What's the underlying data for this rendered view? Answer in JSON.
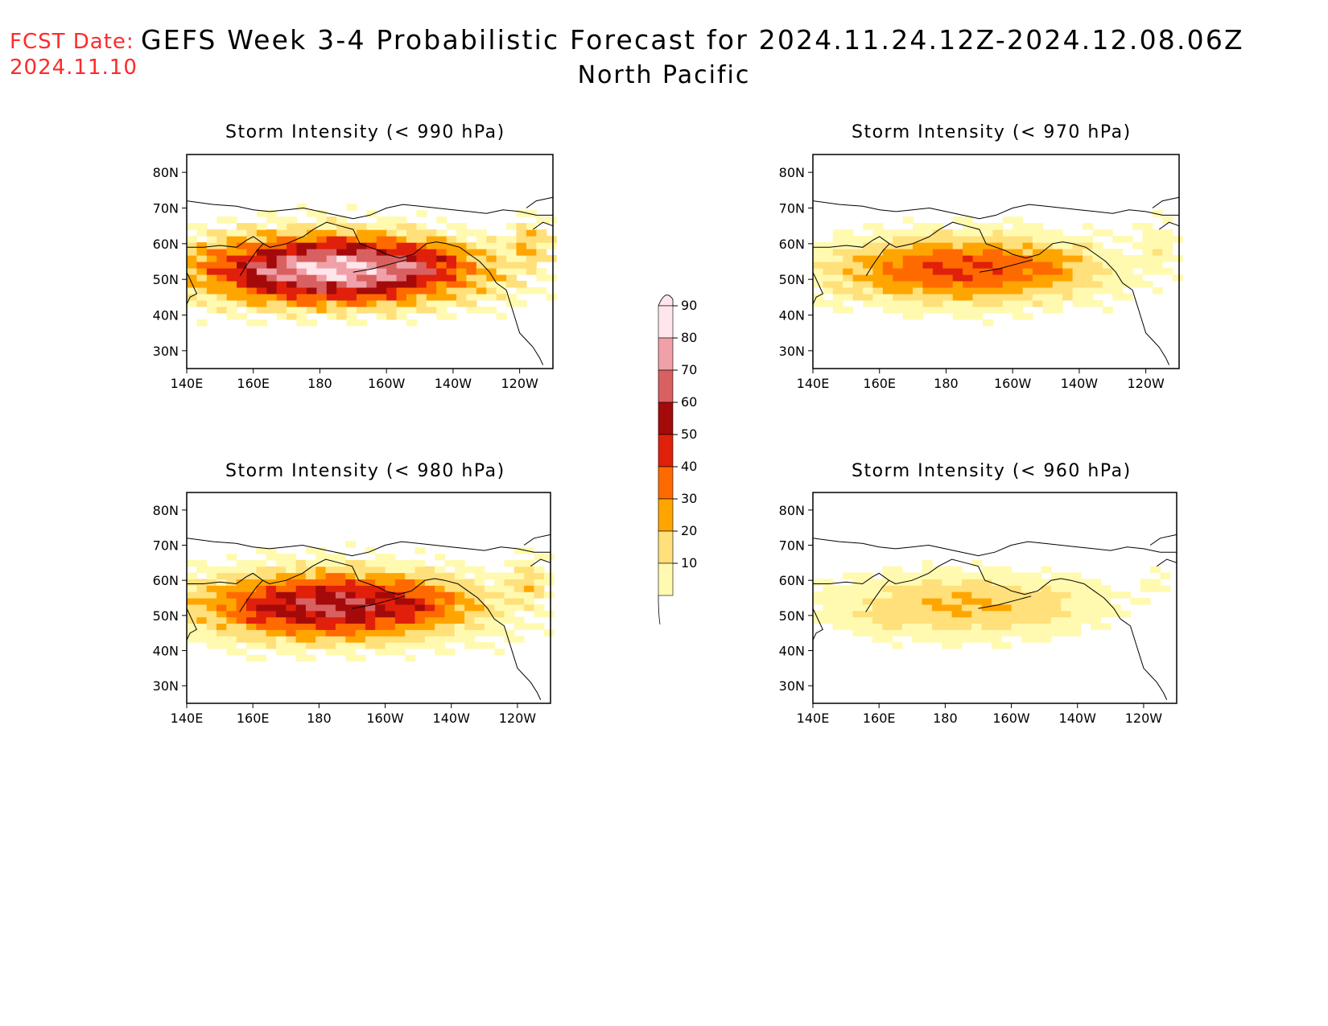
{
  "forecast": {
    "label": "FCST Date:",
    "date": "2024.11.10"
  },
  "header": {
    "title": "GEFS Week 3-4 Probabilistic Forecast for 2024.11.24.12Z-2024.12.08.06Z",
    "subtitle": "North Pacific"
  },
  "axes": {
    "lat_labels": [
      "80N",
      "70N",
      "60N",
      "50N",
      "40N",
      "30N"
    ],
    "lon_labels": [
      "140E",
      "160E",
      "180",
      "160W",
      "140W",
      "120W"
    ]
  },
  "panels": [
    {
      "id": "p990",
      "title": "Storm Intensity (< 990 hPa)",
      "max_category": 9
    },
    {
      "id": "p970",
      "title": "Storm Intensity (< 970 hPa)",
      "max_category": 5
    },
    {
      "id": "p980",
      "title": "Storm Intensity (< 980 hPa)",
      "max_category": 7
    },
    {
      "id": "p960",
      "title": "Storm Intensity (< 960 hPa)",
      "max_category": 3
    }
  ],
  "colorbar": {
    "labels": [
      "90",
      "80",
      "70",
      "60",
      "50",
      "40",
      "30",
      "20",
      "10"
    ],
    "colors": [
      "#ffe6ea",
      "#f0a0a8",
      "#d96060",
      "#a40a0a",
      "#e0200a",
      "#ff6a00",
      "#ffa500",
      "#ffe07a",
      "#fffab0"
    ]
  }
}
